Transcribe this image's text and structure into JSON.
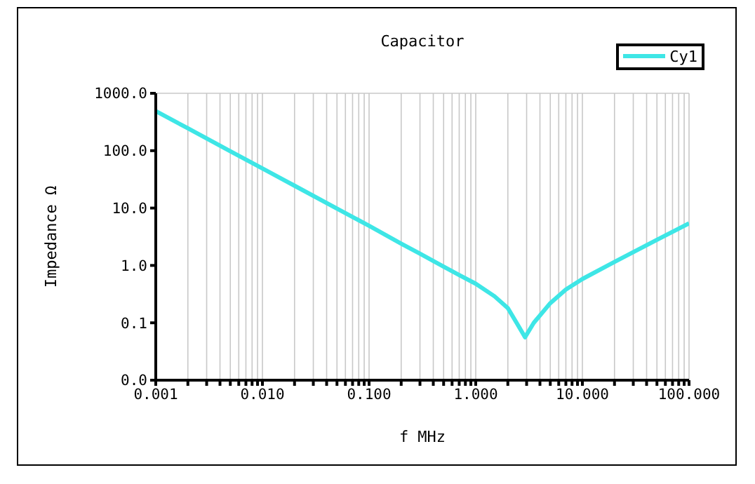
{
  "chart_data": {
    "type": "line",
    "title": "Capacitor",
    "xlabel": "f MHz",
    "ylabel": "Impedance Ω",
    "x": [
      0.001,
      0.002,
      0.005,
      0.01,
      0.02,
      0.05,
      0.1,
      0.2,
      0.3,
      0.5,
      0.7,
      1,
      1.5,
      2,
      2.5,
      2.9,
      3.5,
      5,
      7,
      10,
      20,
      50,
      100
    ],
    "series": [
      {
        "name": "Cy1",
        "color": "#3ee6e6",
        "values": [
          490,
          245,
          98,
          49,
          24.5,
          9.8,
          4.9,
          2.4,
          1.6,
          0.95,
          0.68,
          0.48,
          0.29,
          0.18,
          0.09,
          0.056,
          0.1,
          0.22,
          0.38,
          0.58,
          1.15,
          2.8,
          5.4
        ]
      }
    ],
    "log": "xy",
    "xlim": [
      0.001,
      100
    ],
    "ylim": [
      0.01,
      1000
    ],
    "xticks": [
      {
        "value": 0.001,
        "label": "0.001"
      },
      {
        "value": 0.002,
        "label": null
      },
      {
        "value": 0.003,
        "label": null
      },
      {
        "value": 0.004,
        "label": null
      },
      {
        "value": 0.005,
        "label": null
      },
      {
        "value": 0.006,
        "label": null
      },
      {
        "value": 0.007,
        "label": null
      },
      {
        "value": 0.008,
        "label": null
      },
      {
        "value": 0.009,
        "label": null
      },
      {
        "value": 0.01,
        "label": "0.010"
      },
      {
        "value": 0.02,
        "label": null
      },
      {
        "value": 0.03,
        "label": null
      },
      {
        "value": 0.04,
        "label": null
      },
      {
        "value": 0.05,
        "label": null
      },
      {
        "value": 0.06,
        "label": null
      },
      {
        "value": 0.07,
        "label": null
      },
      {
        "value": 0.08,
        "label": null
      },
      {
        "value": 0.09,
        "label": null
      },
      {
        "value": 0.1,
        "label": "0.100"
      },
      {
        "value": 0.2,
        "label": null
      },
      {
        "value": 0.3,
        "label": null
      },
      {
        "value": 0.4,
        "label": null
      },
      {
        "value": 0.5,
        "label": null
      },
      {
        "value": 0.6,
        "label": null
      },
      {
        "value": 0.7,
        "label": null
      },
      {
        "value": 0.8,
        "label": null
      },
      {
        "value": 0.9,
        "label": null
      },
      {
        "value": 1,
        "label": "1.000"
      },
      {
        "value": 2,
        "label": null
      },
      {
        "value": 3,
        "label": null
      },
      {
        "value": 4,
        "label": null
      },
      {
        "value": 5,
        "label": null
      },
      {
        "value": 6,
        "label": null
      },
      {
        "value": 7,
        "label": null
      },
      {
        "value": 8,
        "label": null
      },
      {
        "value": 9,
        "label": null
      },
      {
        "value": 10,
        "label": "10.000"
      },
      {
        "value": 20,
        "label": null
      },
      {
        "value": 30,
        "label": null
      },
      {
        "value": 40,
        "label": null
      },
      {
        "value": 50,
        "label": null
      },
      {
        "value": 60,
        "label": null
      },
      {
        "value": 70,
        "label": null
      },
      {
        "value": 80,
        "label": null
      },
      {
        "value": 90,
        "label": null
      },
      {
        "value": 100,
        "label": "100.000"
      }
    ],
    "yticks": [
      {
        "value": 0.01,
        "label": "0.0"
      },
      {
        "value": 0.1,
        "label": "0.1"
      },
      {
        "value": 1,
        "label": "1.0"
      },
      {
        "value": 10,
        "label": "10.0"
      },
      {
        "value": 100,
        "label": "100.0"
      },
      {
        "value": 1000,
        "label": "1000.0"
      }
    ],
    "grid": true,
    "legend": "top right",
    "marker": "none",
    "line_style": "solid"
  }
}
